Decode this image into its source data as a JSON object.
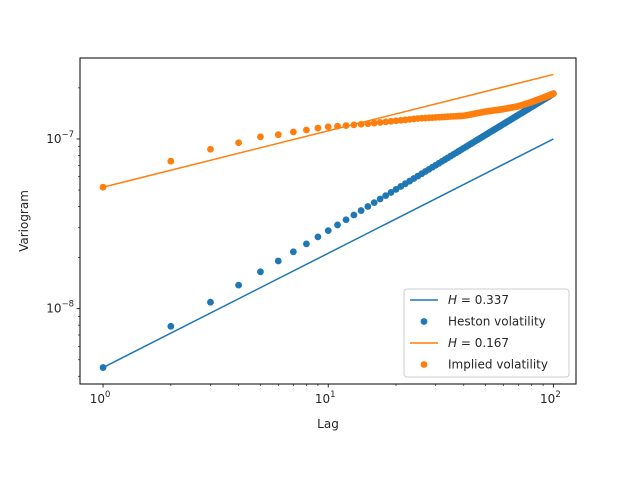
{
  "chart_data": {
    "type": "scatter",
    "xlabel": "Lag",
    "ylabel": "Variogram",
    "x_scale": "log",
    "y_scale": "log",
    "xlim": [
      0.79,
      126
    ],
    "ylim": [
      3.6e-09,
      3e-07
    ],
    "x_ticks": [
      {
        "value": 1,
        "base": "10",
        "exp": "0"
      },
      {
        "value": 10,
        "base": "10",
        "exp": "1"
      },
      {
        "value": 100,
        "base": "10",
        "exp": "2"
      }
    ],
    "y_ticks": [
      {
        "value": 1e-08,
        "base": "10",
        "exp": "−8"
      },
      {
        "value": 1e-07,
        "base": "10",
        "exp": "−7"
      }
    ],
    "legend_position": "lower-right",
    "series": [
      {
        "name": "H = 0.337",
        "label_var": "H",
        "label_rest": " = 0.337",
        "kind": "line",
        "color": "#1f77b4",
        "x": [
          1,
          100
        ],
        "y": [
          4.5e-09,
          1e-07
        ]
      },
      {
        "name": "Heston volatility",
        "kind": "scatter",
        "color": "#1f77b4",
        "x_range": [
          1,
          100
        ],
        "y_range": [
          4.5e-09,
          1.85e-07
        ]
      },
      {
        "name": "H = 0.167",
        "label_var": "H",
        "label_rest": " = 0.167",
        "kind": "line",
        "color": "#ff7f0e",
        "x": [
          1,
          100
        ],
        "y": [
          5.2e-08,
          2.4e-07
        ]
      },
      {
        "name": "Implied volatility",
        "kind": "scatter",
        "color": "#ff7f0e",
        "points": [
          [
            1,
            5.2e-08
          ],
          [
            2,
            7.4e-08
          ],
          [
            3,
            8.7e-08
          ],
          [
            4,
            9.5e-08
          ],
          [
            5,
            1.03e-07
          ],
          [
            6,
            1.06e-07
          ],
          [
            7,
            1.1e-07
          ],
          [
            8,
            1.13e-07
          ],
          [
            9,
            1.16e-07
          ],
          [
            10,
            1.18e-07
          ],
          [
            12,
            1.2e-07
          ],
          [
            15,
            1.23e-07
          ],
          [
            20,
            1.28e-07
          ],
          [
            25,
            1.32e-07
          ],
          [
            30,
            1.34e-07
          ],
          [
            40,
            1.37e-07
          ],
          [
            50,
            1.45e-07
          ],
          [
            60,
            1.5e-07
          ],
          [
            70,
            1.56e-07
          ],
          [
            80,
            1.65e-07
          ],
          [
            90,
            1.75e-07
          ],
          [
            100,
            1.85e-07
          ]
        ]
      }
    ]
  }
}
